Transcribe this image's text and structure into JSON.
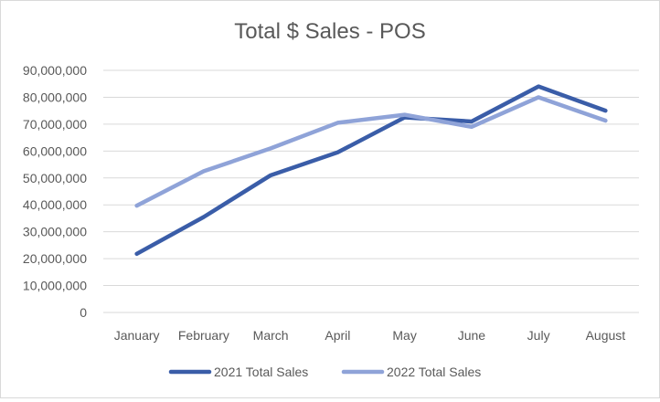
{
  "chart_data": {
    "type": "line",
    "title": "Total $ Sales - POS",
    "xlabel": "",
    "ylabel": "",
    "categories": [
      "January",
      "February",
      "March",
      "April",
      "May",
      "June",
      "July",
      "August"
    ],
    "ylim": [
      0,
      90000000
    ],
    "yticks": [
      0,
      10000000,
      20000000,
      30000000,
      40000000,
      50000000,
      60000000,
      70000000,
      80000000,
      90000000
    ],
    "ytick_labels": [
      "0",
      "10,000,000",
      "20,000,000",
      "30,000,000",
      "40,000,000",
      "50,000,000",
      "60,000,000",
      "70,000,000",
      "80,000,000",
      "90,000,000"
    ],
    "grid": "horizontal",
    "legend_position": "bottom",
    "series": [
      {
        "name": "2021 Total Sales",
        "color": "#3a5da8",
        "values": [
          21800000,
          35500000,
          51000000,
          59500000,
          72500000,
          71000000,
          84000000,
          75000000
        ]
      },
      {
        "name": "2022 Total Sales",
        "color": "#8fa3d8",
        "values": [
          39700000,
          52500000,
          61000000,
          70500000,
          73500000,
          69000000,
          80000000,
          71300000
        ]
      }
    ]
  }
}
